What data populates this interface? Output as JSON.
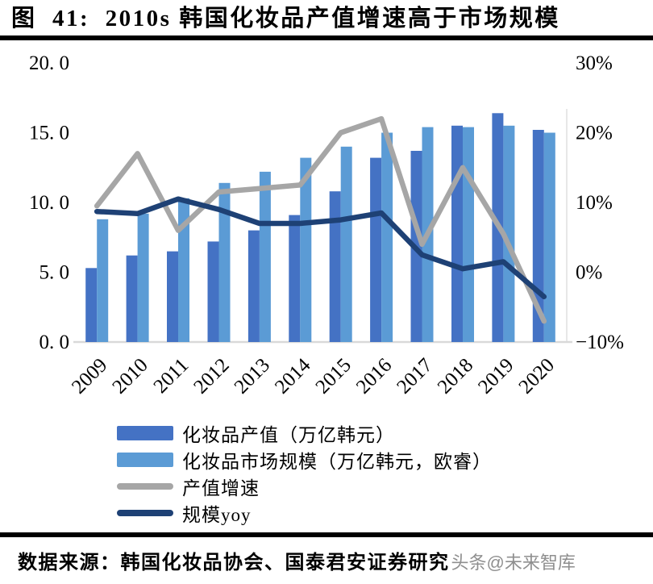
{
  "header": {
    "title": "图  41:  2010s 韩国化妆品产值增速高于市场规模"
  },
  "chart_data": {
    "type": "bar+line",
    "title": "2010s 韩国化妆品产值增速高于市场规模",
    "categories": [
      "2009",
      "2010",
      "2011",
      "2012",
      "2013",
      "2014",
      "2015",
      "2016",
      "2017",
      "2018",
      "2019",
      "2020"
    ],
    "series": [
      {
        "id": "production",
        "name": "化妆品产值（万亿韩元）",
        "type": "bar",
        "axis": "left",
        "color": "#4472C4",
        "values": [
          5.3,
          6.2,
          6.5,
          7.2,
          8.0,
          9.1,
          10.8,
          13.2,
          13.7,
          15.5,
          16.4,
          15.2
        ]
      },
      {
        "id": "market-size",
        "name": "化妆品市场规模（万亿韩元，欧睿）",
        "type": "bar",
        "axis": "left",
        "color": "#5B9BD5",
        "values": [
          8.8,
          9.2,
          10.3,
          11.4,
          12.2,
          13.2,
          14.0,
          15.0,
          15.4,
          15.4,
          15.5,
          15.0
        ]
      },
      {
        "id": "production-growth",
        "name": "产值增速",
        "type": "line",
        "axis": "right",
        "color": "#A6A6A6",
        "values": [
          9.5,
          17,
          6,
          11.5,
          12,
          12.5,
          20,
          22,
          4,
          15,
          5.5,
          -7
        ]
      },
      {
        "id": "market-yoy",
        "name": "规模yoy",
        "type": "line",
        "axis": "right",
        "color": "#1E4175",
        "values": [
          8.7,
          8.4,
          10.5,
          9,
          7,
          7,
          7.5,
          8.5,
          2.5,
          0.5,
          1.5,
          -3.5
        ]
      }
    ],
    "left_axis": {
      "min": 0,
      "max": 20,
      "ticks": [
        {
          "label": "0. 0",
          "value": 0
        },
        {
          "label": "5. 0",
          "value": 5
        },
        {
          "label": "10. 0",
          "value": 10
        },
        {
          "label": "15. 0",
          "value": 15
        },
        {
          "label": "20. 0",
          "value": 20
        }
      ]
    },
    "right_axis": {
      "min": -10,
      "max": 30,
      "ticks": [
        {
          "label": "−10%",
          "value": -10
        },
        {
          "label": "0%",
          "value": 0
        },
        {
          "label": "10%",
          "value": 10
        },
        {
          "label": "20%",
          "value": 20
        },
        {
          "label": "30%",
          "value": 30
        }
      ]
    },
    "grid": false,
    "legend_position": "below-left",
    "baseline_color": "#D9D9D9"
  },
  "footer": {
    "source": "数据来源：韩国化妆品协会、国泰君安证券研究",
    "watermark": "头条@未来智库"
  }
}
